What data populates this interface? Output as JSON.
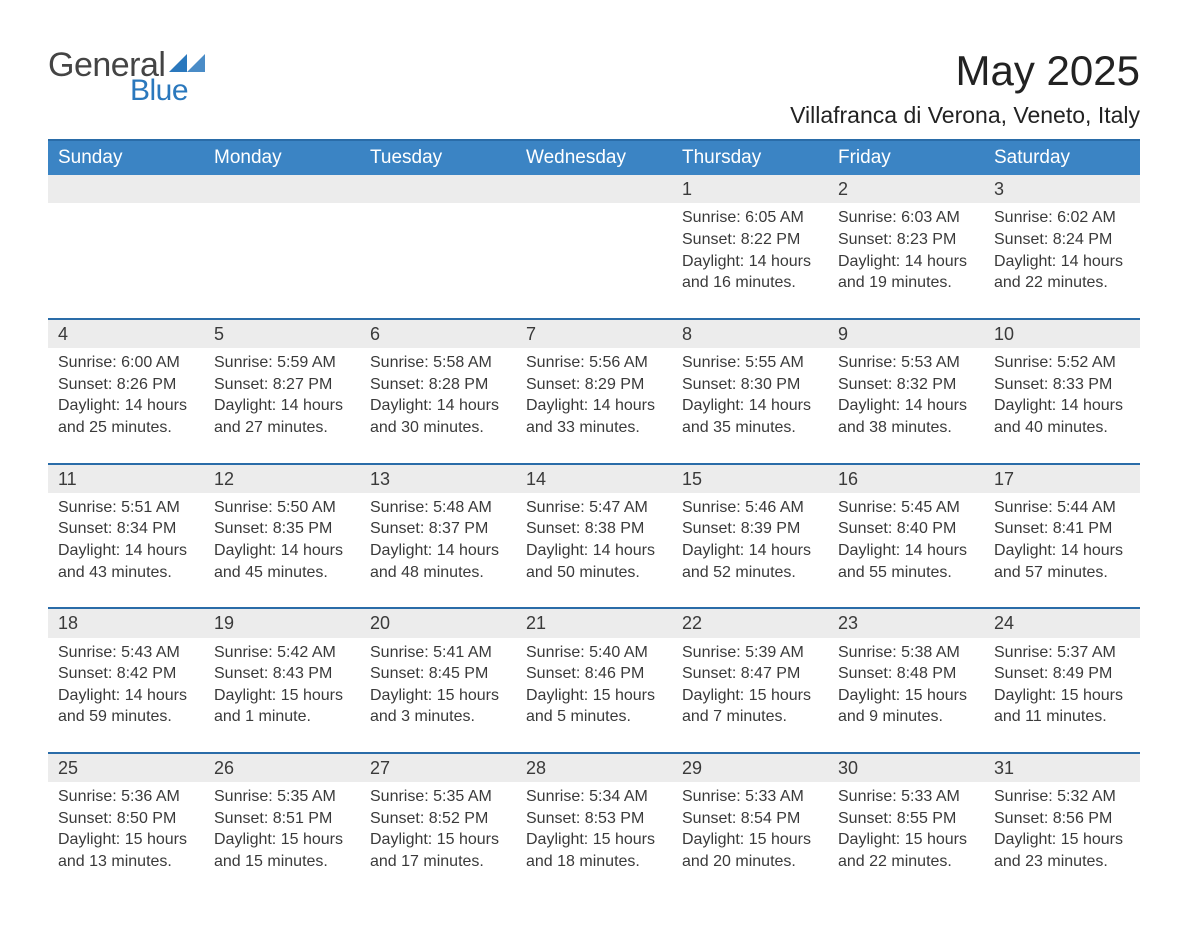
{
  "brand": {
    "text_general": "General",
    "text_blue": "Blue",
    "triangle_color": "#2a78bd"
  },
  "title": "May 2025",
  "location": "Villafranca di Verona, Veneto, Italy",
  "colors": {
    "header_bg": "#3b84c4",
    "header_border": "#2a6ca8",
    "daynum_bg": "#ececec",
    "text": "#3a3a3a",
    "page_bg": "#ffffff"
  },
  "weekdays": [
    "Sunday",
    "Monday",
    "Tuesday",
    "Wednesday",
    "Thursday",
    "Friday",
    "Saturday"
  ],
  "weeks": [
    [
      null,
      null,
      null,
      null,
      {
        "n": "1",
        "sunrise": "Sunrise: 6:05 AM",
        "sunset": "Sunset: 8:22 PM",
        "daylight": "Daylight: 14 hours and 16 minutes."
      },
      {
        "n": "2",
        "sunrise": "Sunrise: 6:03 AM",
        "sunset": "Sunset: 8:23 PM",
        "daylight": "Daylight: 14 hours and 19 minutes."
      },
      {
        "n": "3",
        "sunrise": "Sunrise: 6:02 AM",
        "sunset": "Sunset: 8:24 PM",
        "daylight": "Daylight: 14 hours and 22 minutes."
      }
    ],
    [
      {
        "n": "4",
        "sunrise": "Sunrise: 6:00 AM",
        "sunset": "Sunset: 8:26 PM",
        "daylight": "Daylight: 14 hours and 25 minutes."
      },
      {
        "n": "5",
        "sunrise": "Sunrise: 5:59 AM",
        "sunset": "Sunset: 8:27 PM",
        "daylight": "Daylight: 14 hours and 27 minutes."
      },
      {
        "n": "6",
        "sunrise": "Sunrise: 5:58 AM",
        "sunset": "Sunset: 8:28 PM",
        "daylight": "Daylight: 14 hours and 30 minutes."
      },
      {
        "n": "7",
        "sunrise": "Sunrise: 5:56 AM",
        "sunset": "Sunset: 8:29 PM",
        "daylight": "Daylight: 14 hours and 33 minutes."
      },
      {
        "n": "8",
        "sunrise": "Sunrise: 5:55 AM",
        "sunset": "Sunset: 8:30 PM",
        "daylight": "Daylight: 14 hours and 35 minutes."
      },
      {
        "n": "9",
        "sunrise": "Sunrise: 5:53 AM",
        "sunset": "Sunset: 8:32 PM",
        "daylight": "Daylight: 14 hours and 38 minutes."
      },
      {
        "n": "10",
        "sunrise": "Sunrise: 5:52 AM",
        "sunset": "Sunset: 8:33 PM",
        "daylight": "Daylight: 14 hours and 40 minutes."
      }
    ],
    [
      {
        "n": "11",
        "sunrise": "Sunrise: 5:51 AM",
        "sunset": "Sunset: 8:34 PM",
        "daylight": "Daylight: 14 hours and 43 minutes."
      },
      {
        "n": "12",
        "sunrise": "Sunrise: 5:50 AM",
        "sunset": "Sunset: 8:35 PM",
        "daylight": "Daylight: 14 hours and 45 minutes."
      },
      {
        "n": "13",
        "sunrise": "Sunrise: 5:48 AM",
        "sunset": "Sunset: 8:37 PM",
        "daylight": "Daylight: 14 hours and 48 minutes."
      },
      {
        "n": "14",
        "sunrise": "Sunrise: 5:47 AM",
        "sunset": "Sunset: 8:38 PM",
        "daylight": "Daylight: 14 hours and 50 minutes."
      },
      {
        "n": "15",
        "sunrise": "Sunrise: 5:46 AM",
        "sunset": "Sunset: 8:39 PM",
        "daylight": "Daylight: 14 hours and 52 minutes."
      },
      {
        "n": "16",
        "sunrise": "Sunrise: 5:45 AM",
        "sunset": "Sunset: 8:40 PM",
        "daylight": "Daylight: 14 hours and 55 minutes."
      },
      {
        "n": "17",
        "sunrise": "Sunrise: 5:44 AM",
        "sunset": "Sunset: 8:41 PM",
        "daylight": "Daylight: 14 hours and 57 minutes."
      }
    ],
    [
      {
        "n": "18",
        "sunrise": "Sunrise: 5:43 AM",
        "sunset": "Sunset: 8:42 PM",
        "daylight": "Daylight: 14 hours and 59 minutes."
      },
      {
        "n": "19",
        "sunrise": "Sunrise: 5:42 AM",
        "sunset": "Sunset: 8:43 PM",
        "daylight": "Daylight: 15 hours and 1 minute."
      },
      {
        "n": "20",
        "sunrise": "Sunrise: 5:41 AM",
        "sunset": "Sunset: 8:45 PM",
        "daylight": "Daylight: 15 hours and 3 minutes."
      },
      {
        "n": "21",
        "sunrise": "Sunrise: 5:40 AM",
        "sunset": "Sunset: 8:46 PM",
        "daylight": "Daylight: 15 hours and 5 minutes."
      },
      {
        "n": "22",
        "sunrise": "Sunrise: 5:39 AM",
        "sunset": "Sunset: 8:47 PM",
        "daylight": "Daylight: 15 hours and 7 minutes."
      },
      {
        "n": "23",
        "sunrise": "Sunrise: 5:38 AM",
        "sunset": "Sunset: 8:48 PM",
        "daylight": "Daylight: 15 hours and 9 minutes."
      },
      {
        "n": "24",
        "sunrise": "Sunrise: 5:37 AM",
        "sunset": "Sunset: 8:49 PM",
        "daylight": "Daylight: 15 hours and 11 minutes."
      }
    ],
    [
      {
        "n": "25",
        "sunrise": "Sunrise: 5:36 AM",
        "sunset": "Sunset: 8:50 PM",
        "daylight": "Daylight: 15 hours and 13 minutes."
      },
      {
        "n": "26",
        "sunrise": "Sunrise: 5:35 AM",
        "sunset": "Sunset: 8:51 PM",
        "daylight": "Daylight: 15 hours and 15 minutes."
      },
      {
        "n": "27",
        "sunrise": "Sunrise: 5:35 AM",
        "sunset": "Sunset: 8:52 PM",
        "daylight": "Daylight: 15 hours and 17 minutes."
      },
      {
        "n": "28",
        "sunrise": "Sunrise: 5:34 AM",
        "sunset": "Sunset: 8:53 PM",
        "daylight": "Daylight: 15 hours and 18 minutes."
      },
      {
        "n": "29",
        "sunrise": "Sunrise: 5:33 AM",
        "sunset": "Sunset: 8:54 PM",
        "daylight": "Daylight: 15 hours and 20 minutes."
      },
      {
        "n": "30",
        "sunrise": "Sunrise: 5:33 AM",
        "sunset": "Sunset: 8:55 PM",
        "daylight": "Daylight: 15 hours and 22 minutes."
      },
      {
        "n": "31",
        "sunrise": "Sunrise: 5:32 AM",
        "sunset": "Sunset: 8:56 PM",
        "daylight": "Daylight: 15 hours and 23 minutes."
      }
    ]
  ]
}
